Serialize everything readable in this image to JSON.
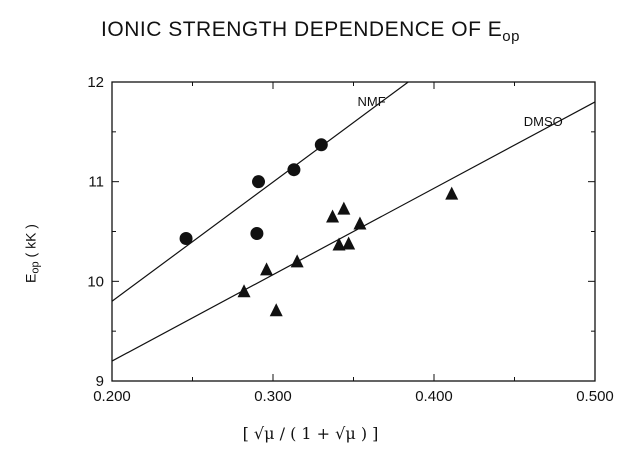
{
  "chart_data": {
    "type": "scatter",
    "title": "IONIC STRENGTH DEPENDENCE OF E",
    "title_subscript": "op",
    "ylabel": "E",
    "ylabel_subscript": "op",
    "ylabel_suffix": " ( kK )",
    "xlabel": "[ √μ / ( 1 + √μ ) ]",
    "xlim": [
      0.2,
      0.5
    ],
    "ylim": [
      9,
      12
    ],
    "xticks": [
      "0.200",
      "0.300",
      "0.400",
      "0.500"
    ],
    "yticks": [
      "9",
      "10",
      "11",
      "12"
    ],
    "grid": false,
    "series": [
      {
        "name": "NMF",
        "marker": "circle",
        "x": [
          0.246,
          0.29,
          0.291,
          0.313,
          0.33
        ],
        "y": [
          10.43,
          10.48,
          11.0,
          11.12,
          11.37
        ],
        "fit_line": {
          "x": [
            0.2,
            0.384
          ],
          "y": [
            9.8,
            12.0
          ]
        }
      },
      {
        "name": "DMSO",
        "marker": "triangle",
        "x": [
          0.282,
          0.296,
          0.302,
          0.315,
          0.337,
          0.341,
          0.344,
          0.347,
          0.354,
          0.411
        ],
        "y": [
          9.9,
          10.12,
          9.71,
          10.2,
          10.65,
          10.37,
          10.73,
          10.38,
          10.58,
          10.88
        ],
        "fit_line": {
          "x": [
            0.2,
            0.5
          ],
          "y": [
            9.2,
            11.8
          ]
        }
      }
    ],
    "colors": {
      "ink": "#111111",
      "background": "#ffffff"
    }
  }
}
